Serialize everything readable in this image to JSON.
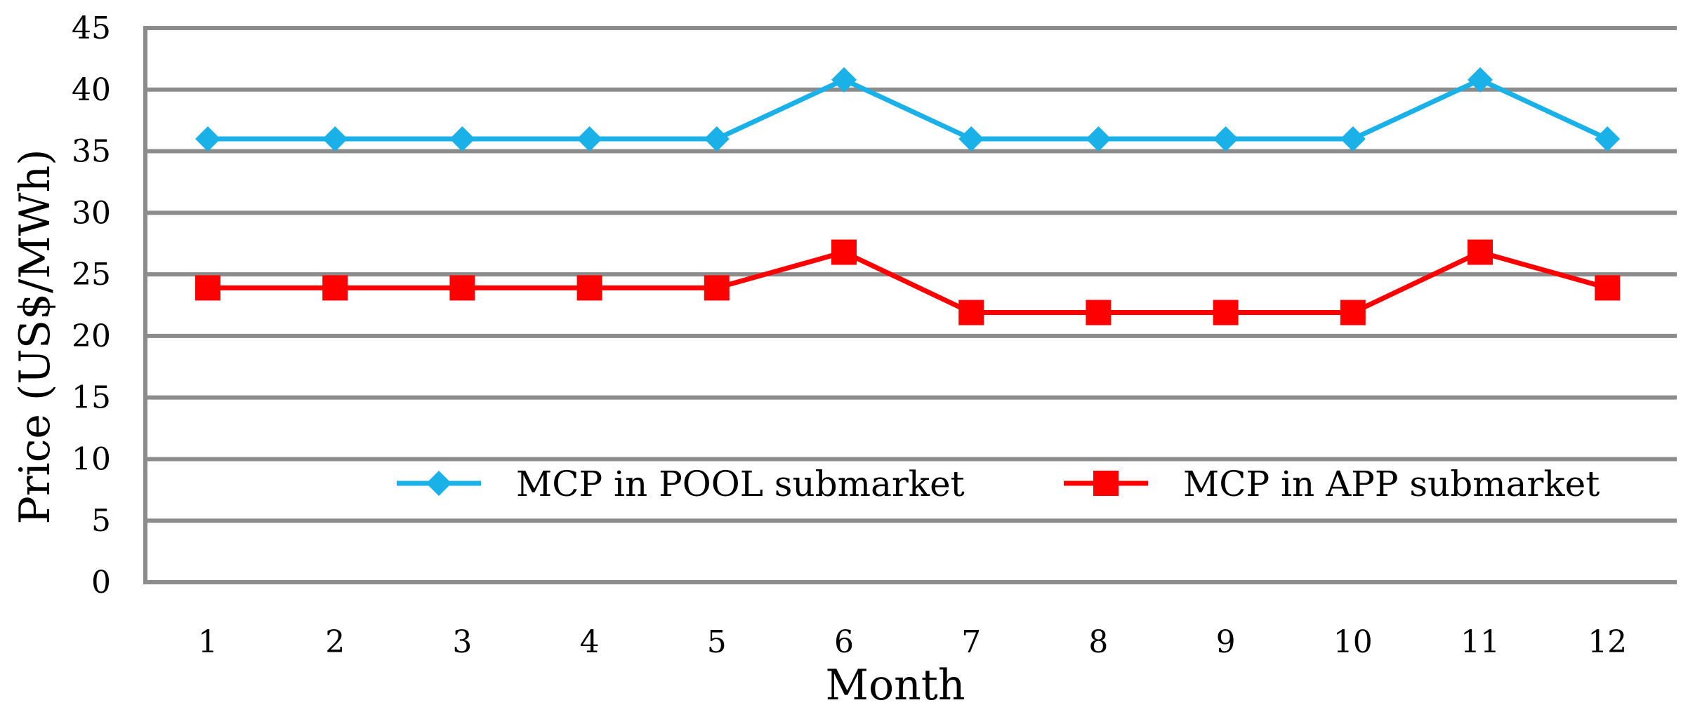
{
  "chart_data": {
    "type": "line",
    "title": "",
    "xlabel": "Month",
    "ylabel": "Price (US$/MWh)",
    "categories": [
      "1",
      "2",
      "3",
      "4",
      "5",
      "6",
      "7",
      "8",
      "9",
      "10",
      "11",
      "12"
    ],
    "ylim": [
      0,
      45
    ],
    "yticks": [
      "0",
      "5",
      "10",
      "15",
      "20",
      "25",
      "30",
      "35",
      "40",
      "45"
    ],
    "grid": "horizontal",
    "legend_position": "center-right",
    "series": [
      {
        "name": "MCP in POOL submarket",
        "color": "#1ab0e8",
        "marker": "diamond",
        "values": [
          36,
          36,
          36,
          36,
          36,
          40.8,
          36,
          36,
          36,
          36,
          40.8,
          36
        ]
      },
      {
        "name": "MCP in APP submarket",
        "color": "#ff0000",
        "marker": "square",
        "values": [
          23.9,
          23.9,
          23.9,
          23.9,
          23.9,
          26.8,
          21.9,
          21.9,
          21.9,
          21.9,
          26.8,
          23.9
        ]
      }
    ]
  }
}
